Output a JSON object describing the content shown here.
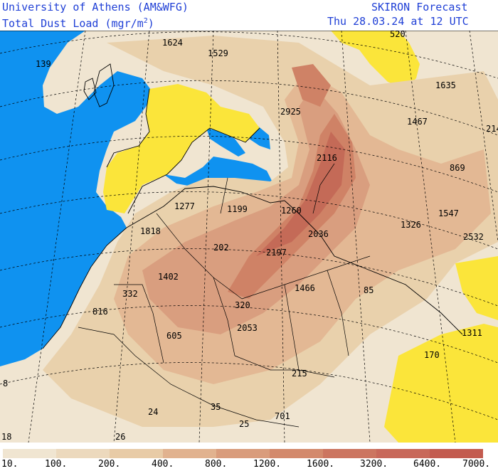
{
  "header": {
    "institution": "University of Athens (AM&WFG)",
    "product_prefix": "Total Dust Load (mgr/m",
    "product_exp": "2",
    "product_suffix": ")",
    "forecast_name": "SKIRON Forecast",
    "valid_time": "Thu 28.03.24 at 12 UTC"
  },
  "colors": {
    "sea": "#0f92f0",
    "land_low": "#f0e5d1",
    "dust_1": "#e9d1ac",
    "dust_2": "#e3b894",
    "dust_3": "#d99e7f",
    "dust_4": "#cf8266",
    "dust_5": "#c46a57",
    "no_data": "#fbe53a",
    "outline": "#000000"
  },
  "map_labels": [
    {
      "id": "l1624",
      "text": "1624"
    },
    {
      "id": "l1529",
      "text": "1529"
    },
    {
      "id": "l520",
      "text": "520"
    },
    {
      "id": "l139",
      "text": "139"
    },
    {
      "id": "l1635",
      "text": "1635"
    },
    {
      "id": "l2925",
      "text": "2925"
    },
    {
      "id": "l1467",
      "text": "1467"
    },
    {
      "id": "l214",
      "text": "214"
    },
    {
      "id": "l2116",
      "text": "2116"
    },
    {
      "id": "l869",
      "text": "869"
    },
    {
      "id": "l1277",
      "text": "1277"
    },
    {
      "id": "l1199",
      "text": "1199"
    },
    {
      "id": "l1260",
      "text": "1260"
    },
    {
      "id": "l1547",
      "text": "1547"
    },
    {
      "id": "l1818",
      "text": "1818"
    },
    {
      "id": "l1326",
      "text": "1326"
    },
    {
      "id": "l2036",
      "text": "2036"
    },
    {
      "id": "l2532",
      "text": "2532"
    },
    {
      "id": "l202",
      "text": "202"
    },
    {
      "id": "l2197",
      "text": "2197"
    },
    {
      "id": "l1402",
      "text": "1402"
    },
    {
      "id": "l332",
      "text": "332"
    },
    {
      "id": "l1466",
      "text": "1466"
    },
    {
      "id": "l85",
      "text": "85"
    },
    {
      "id": "l816",
      "text": "816"
    },
    {
      "id": "l320",
      "text": "320"
    },
    {
      "id": "l605",
      "text": "605"
    },
    {
      "id": "l2053",
      "text": "2053"
    },
    {
      "id": "l1311",
      "text": "1311"
    },
    {
      "id": "l170",
      "text": "170"
    },
    {
      "id": "l215",
      "text": "215"
    },
    {
      "id": "l8",
      "text": "8"
    },
    {
      "id": "l24",
      "text": "24"
    },
    {
      "id": "l35",
      "text": "35"
    },
    {
      "id": "l701",
      "text": "701"
    },
    {
      "id": "l25",
      "text": "25"
    },
    {
      "id": "l26",
      "text": "26"
    },
    {
      "id": "l18",
      "text": "18"
    }
  ],
  "colorbar": {
    "ticks": [
      "10.",
      "100.",
      "200.",
      "400.",
      "800.",
      "1200.",
      "1600.",
      "3200.",
      "6400.",
      "7000."
    ],
    "colors": [
      "#f0e5d1",
      "#ecd9bd",
      "#e8cba6",
      "#e1b28f",
      "#d99c7c",
      "#d3896c",
      "#cc7560",
      "#c8685a",
      "#c35b4f"
    ]
  }
}
